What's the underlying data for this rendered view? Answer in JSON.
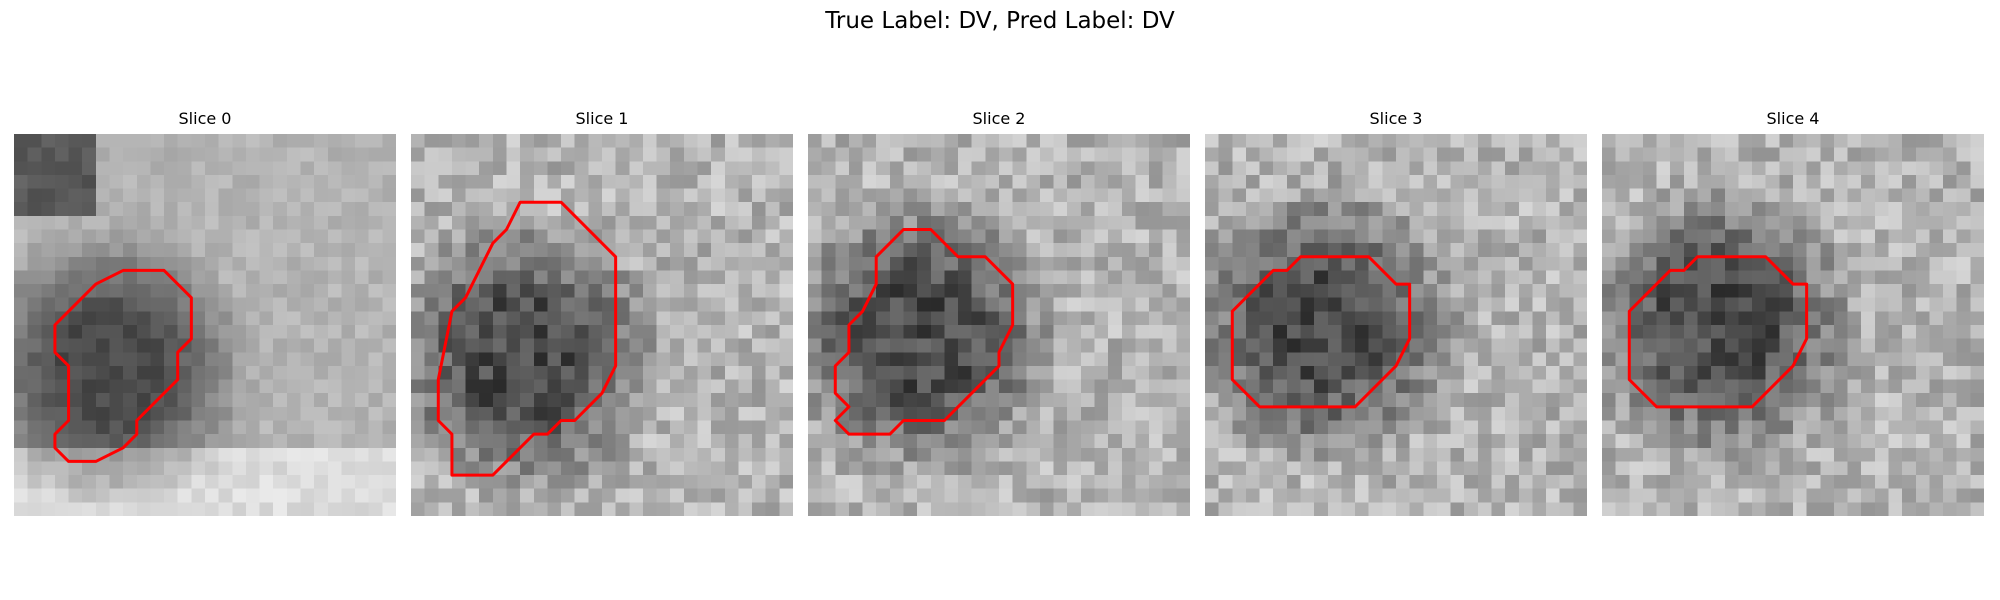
{
  "figure": {
    "title": "True Label: DV, Pred Label: DV"
  },
  "colors": {
    "contour": "#ff0000",
    "background": "#ffffff"
  },
  "slices": [
    {
      "label": "Slice 0",
      "contour": [
        [
          8,
          10
        ],
        [
          11,
          10
        ],
        [
          13,
          12
        ],
        [
          13,
          15
        ],
        [
          12,
          16
        ],
        [
          12,
          18
        ],
        [
          9,
          21
        ],
        [
          9,
          22
        ],
        [
          8,
          23
        ],
        [
          6,
          24
        ],
        [
          4,
          24
        ],
        [
          3,
          23
        ],
        [
          3,
          22
        ],
        [
          4,
          21
        ],
        [
          4,
          17
        ],
        [
          3,
          16
        ],
        [
          3,
          14
        ],
        [
          4,
          13
        ],
        [
          5,
          12
        ],
        [
          6,
          11
        ]
      ]
    },
    {
      "label": "Slice 1",
      "contour": [
        [
          8,
          5
        ],
        [
          11,
          5
        ],
        [
          14,
          8
        ],
        [
          15,
          9
        ],
        [
          15,
          17
        ],
        [
          14,
          19
        ],
        [
          13,
          20
        ],
        [
          12,
          21
        ],
        [
          11,
          21
        ],
        [
          10,
          22
        ],
        [
          9,
          22
        ],
        [
          8,
          23
        ],
        [
          7,
          24
        ],
        [
          6,
          25
        ],
        [
          3,
          25
        ],
        [
          3,
          22
        ],
        [
          2,
          21
        ],
        [
          2,
          18
        ],
        [
          3,
          13
        ],
        [
          4,
          12
        ],
        [
          5,
          10
        ],
        [
          6,
          8
        ],
        [
          7,
          7
        ]
      ]
    },
    {
      "label": "Slice 2",
      "contour": [
        [
          7,
          7
        ],
        [
          9,
          7
        ],
        [
          10,
          8
        ],
        [
          11,
          9
        ],
        [
          13,
          9
        ],
        [
          14,
          10
        ],
        [
          15,
          11
        ],
        [
          15,
          14
        ],
        [
          14,
          16
        ],
        [
          14,
          17
        ],
        [
          13,
          18
        ],
        [
          12,
          19
        ],
        [
          11,
          20
        ],
        [
          10,
          21
        ],
        [
          7,
          21
        ],
        [
          6,
          22
        ],
        [
          3,
          22
        ],
        [
          2,
          21
        ],
        [
          3,
          20
        ],
        [
          2,
          19
        ],
        [
          2,
          17
        ],
        [
          3,
          16
        ],
        [
          3,
          14
        ],
        [
          4,
          13
        ],
        [
          5,
          11
        ],
        [
          5,
          9
        ],
        [
          6,
          8
        ]
      ]
    },
    {
      "label": "Slice 3",
      "contour": [
        [
          7,
          9
        ],
        [
          12,
          9
        ],
        [
          13,
          10
        ],
        [
          14,
          11
        ],
        [
          15,
          11
        ],
        [
          15,
          15
        ],
        [
          14,
          17
        ],
        [
          13,
          18
        ],
        [
          12,
          19
        ],
        [
          11,
          20
        ],
        [
          4,
          20
        ],
        [
          3,
          19
        ],
        [
          2,
          18
        ],
        [
          2,
          13
        ],
        [
          3,
          12
        ],
        [
          4,
          11
        ],
        [
          5,
          10
        ],
        [
          6,
          10
        ]
      ]
    },
    {
      "label": "Slice 4",
      "contour": [
        [
          7,
          9
        ],
        [
          12,
          9
        ],
        [
          13,
          10
        ],
        [
          14,
          11
        ],
        [
          15,
          11
        ],
        [
          15,
          15
        ],
        [
          14,
          17
        ],
        [
          13,
          18
        ],
        [
          12,
          19
        ],
        [
          11,
          20
        ],
        [
          4,
          20
        ],
        [
          3,
          19
        ],
        [
          2,
          18
        ],
        [
          2,
          13
        ],
        [
          3,
          12
        ],
        [
          4,
          11
        ],
        [
          5,
          10
        ],
        [
          6,
          10
        ]
      ]
    }
  ]
}
